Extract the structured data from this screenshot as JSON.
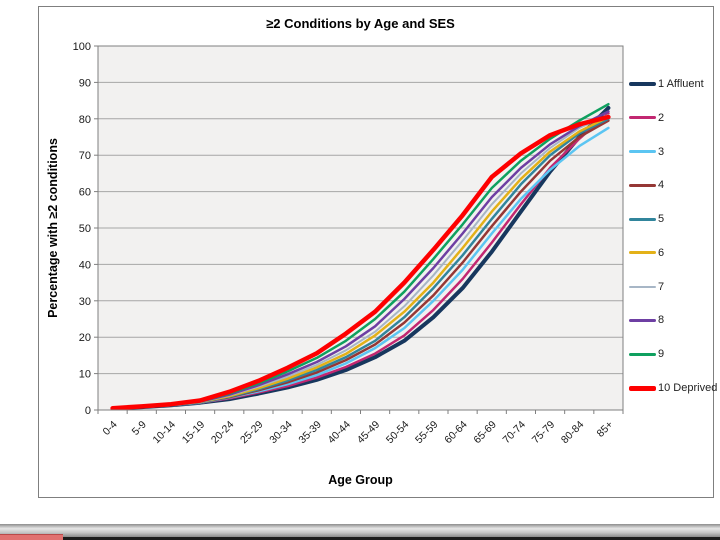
{
  "chart_data": {
    "type": "line",
    "title": "≥2 Conditions by Age and SES",
    "xlabel": "Age Group",
    "ylabel": "Percentage with ≥2 conditions",
    "ylim": [
      0,
      100
    ],
    "yticks": [
      0,
      10,
      20,
      30,
      40,
      50,
      60,
      70,
      80,
      90,
      100
    ],
    "grid": true,
    "legend_position": "right",
    "categories": [
      "0-4",
      "5-9",
      "10-14",
      "15-19",
      "20-24",
      "25-29",
      "30-34",
      "35-39",
      "40-44",
      "45-49",
      "50-54",
      "55-59",
      "60-64",
      "65-69",
      "70-74",
      "75-79",
      "80-84",
      "85+"
    ],
    "series": [
      {
        "name": "1 Affluent",
        "color": "#17375E",
        "width": 4,
        "values": [
          0.4,
          0.8,
          1.3,
          2.0,
          3.0,
          4.5,
          6.2,
          8.3,
          11.0,
          14.5,
          19.0,
          25.5,
          33.5,
          43.5,
          54.5,
          65.5,
          75.0,
          83.0
        ]
      },
      {
        "name": "2",
        "color": "#C22771",
        "width": 2.5,
        "values": [
          0.4,
          0.8,
          1.3,
          2.0,
          3.2,
          4.8,
          6.6,
          8.9,
          11.8,
          15.5,
          20.5,
          27.5,
          36.0,
          46.0,
          56.5,
          66.5,
          74.5,
          81.5
        ]
      },
      {
        "name": "3",
        "color": "#5BC5F2",
        "width": 2.5,
        "values": [
          0.4,
          0.8,
          1.3,
          2.0,
          3.4,
          5.1,
          7.1,
          9.6,
          12.8,
          17.0,
          22.5,
          30.0,
          38.5,
          48.5,
          58.0,
          66.0,
          72.5,
          77.5
        ]
      },
      {
        "name": "4",
        "color": "#953735",
        "width": 2.5,
        "values": [
          0.4,
          0.85,
          1.35,
          2.1,
          3.5,
          5.4,
          7.6,
          10.3,
          13.7,
          18.0,
          24.0,
          31.5,
          40.5,
          50.5,
          60.0,
          68.5,
          75.0,
          79.5
        ]
      },
      {
        "name": "5",
        "color": "#31859C",
        "width": 2.5,
        "values": [
          0.4,
          0.85,
          1.35,
          2.1,
          3.65,
          5.7,
          8.1,
          11.0,
          14.5,
          19.0,
          25.5,
          33.5,
          42.5,
          52.5,
          62.0,
          70.0,
          76.0,
          80.0
        ]
      },
      {
        "name": "6",
        "color": "#E3B118",
        "width": 2.5,
        "values": [
          0.4,
          0.9,
          1.4,
          2.2,
          3.8,
          6.0,
          8.6,
          11.7,
          15.4,
          20.5,
          27.0,
          35.0,
          44.5,
          54.5,
          63.5,
          71.0,
          76.5,
          80.5
        ]
      },
      {
        "name": "7",
        "color": "#A7B6C6",
        "width": 2,
        "values": [
          0.4,
          0.9,
          1.4,
          2.2,
          4.0,
          6.4,
          9.2,
          12.4,
          16.4,
          21.5,
          28.5,
          37.0,
          46.5,
          56.5,
          65.0,
          72.0,
          77.5,
          81.0
        ]
      },
      {
        "name": "8",
        "color": "#6E3FA3",
        "width": 2.5,
        "values": [
          0.45,
          0.9,
          1.45,
          2.3,
          4.2,
          6.8,
          9.8,
          13.2,
          17.5,
          23.0,
          30.5,
          39.0,
          48.5,
          58.5,
          66.5,
          73.0,
          78.0,
          82.0
        ]
      },
      {
        "name": "9",
        "color": "#0FA05F",
        "width": 2.5,
        "values": [
          0.45,
          0.95,
          1.5,
          2.4,
          4.5,
          7.3,
          10.6,
          14.3,
          19.0,
          25.0,
          32.5,
          41.5,
          51.0,
          61.0,
          68.5,
          74.5,
          79.5,
          84.0
        ]
      },
      {
        "name": "10 Deprived",
        "color": "#FE0000",
        "width": 4.5,
        "values": [
          0.5,
          1.0,
          1.6,
          2.6,
          5.0,
          8.0,
          11.6,
          15.6,
          21.0,
          27.0,
          35.0,
          44.0,
          53.5,
          64.0,
          70.5,
          75.5,
          78.5,
          80.5
        ]
      }
    ],
    "colors": {
      "plot_bg": "#F2F1F0",
      "gridline": "#A6A6A6",
      "axis": "#7F7F7F",
      "tick_text": "#1A1A1A",
      "bottom_strip": "#1C1C1C",
      "red_accent": "#E17170"
    }
  }
}
